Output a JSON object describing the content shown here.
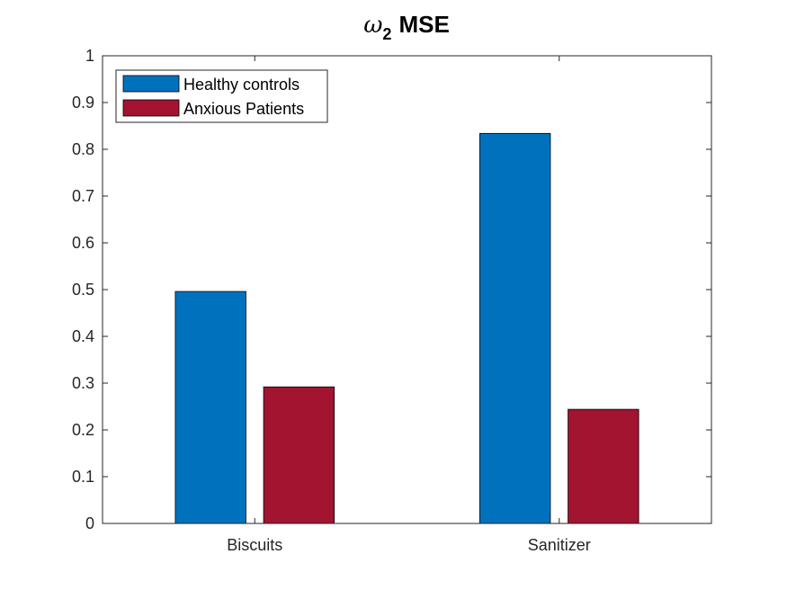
{
  "chart_data": {
    "type": "bar",
    "title": {
      "symbol": "ω",
      "subscript": "2",
      "text": "MSE"
    },
    "xlabel": "",
    "ylabel": "",
    "categories": [
      "Biscuits",
      "Sanitizer"
    ],
    "series": [
      {
        "name": "Healthy controls",
        "values": [
          0.496,
          0.834
        ],
        "color": "#0072BD"
      },
      {
        "name": "Anxious Patients",
        "values": [
          0.292,
          0.244
        ],
        "color": "#A2142F"
      }
    ],
    "ylim": [
      0,
      1
    ],
    "yticks": [
      "0",
      "0.1",
      "0.2",
      "0.3",
      "0.4",
      "0.5",
      "0.6",
      "0.7",
      "0.8",
      "0.9",
      "1"
    ],
    "grid": false,
    "legend_position": "top-left"
  }
}
